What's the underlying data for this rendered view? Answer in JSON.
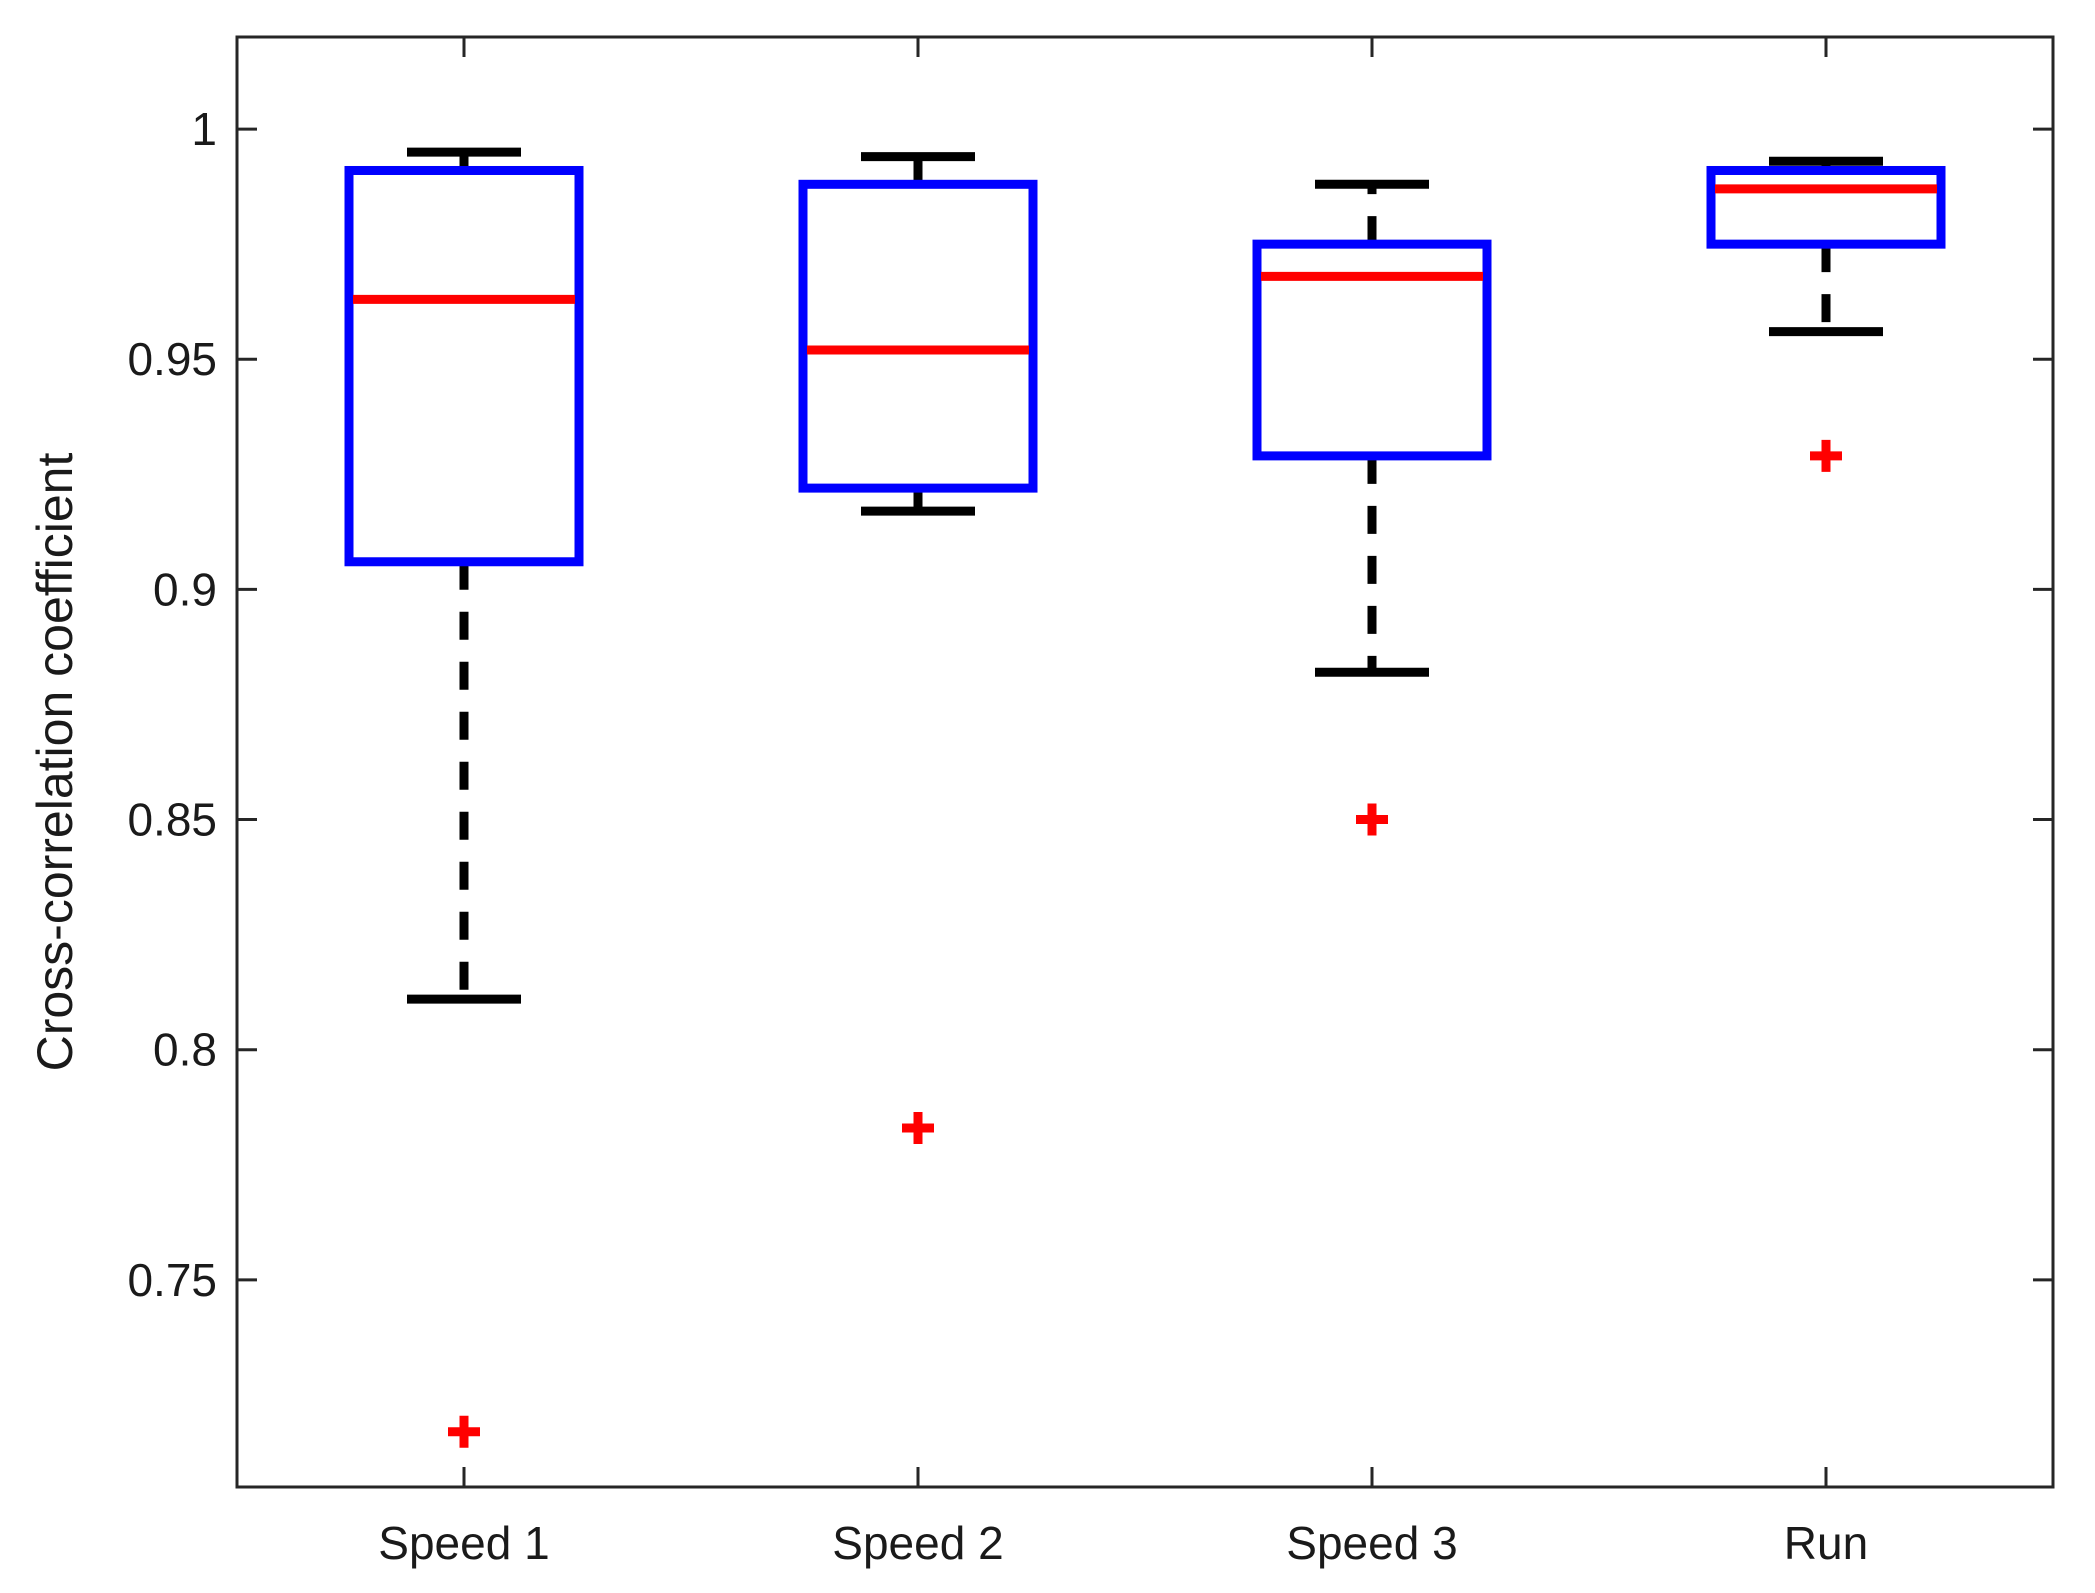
{
  "chart_data": {
    "type": "box",
    "title": "",
    "xlabel": "",
    "ylabel": "Cross-correlation coefficient",
    "categories": [
      "Speed 1",
      "Speed 2",
      "Speed 3",
      "Run"
    ],
    "ylim": [
      0.705,
      1.02
    ],
    "yticks": [
      0.75,
      0.8,
      0.85,
      0.9,
      0.95,
      1
    ],
    "ytick_labels": [
      "0.75",
      "0.8",
      "0.85",
      "0.9",
      "0.95",
      "1"
    ],
    "grid": false,
    "colors": {
      "box": "#0000ff",
      "median": "#ff0000",
      "whisker": "#000000",
      "outlier": "#ff0000",
      "axes": "#262626"
    },
    "boxes": [
      {
        "category": "Speed 1",
        "whisker_low": 0.811,
        "q1": 0.906,
        "median": 0.963,
        "q3": 0.991,
        "whisker_high": 0.995,
        "outliers": [
          0.717
        ]
      },
      {
        "category": "Speed 2",
        "whisker_low": 0.917,
        "q1": 0.922,
        "median": 0.952,
        "q3": 0.988,
        "whisker_high": 0.994,
        "outliers": [
          0.783
        ]
      },
      {
        "category": "Speed 3",
        "whisker_low": 0.882,
        "q1": 0.929,
        "median": 0.968,
        "q3": 0.975,
        "whisker_high": 0.988,
        "outliers": [
          0.85
        ]
      },
      {
        "category": "Run",
        "whisker_low": 0.956,
        "q1": 0.975,
        "median": 0.987,
        "q3": 0.991,
        "whisker_high": 0.993,
        "outliers": [
          0.929
        ]
      }
    ]
  }
}
